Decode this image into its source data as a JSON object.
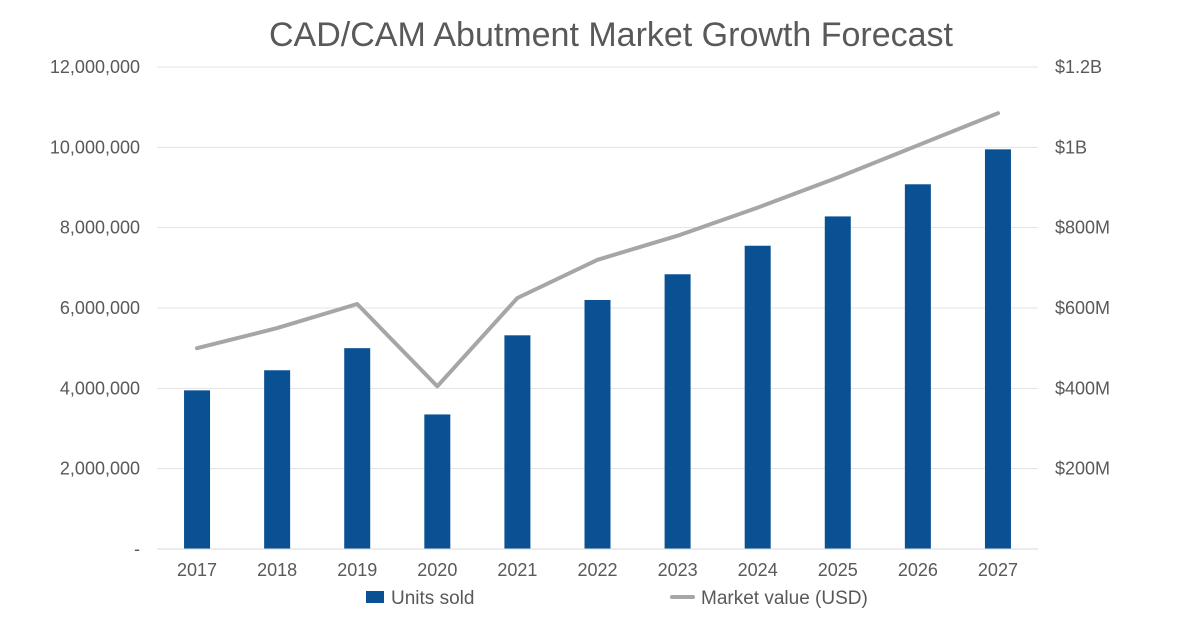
{
  "chart_data": {
    "type": "bar",
    "title": "CAD/CAM Abutment Market Growth Forecast",
    "categories": [
      "2017",
      "2018",
      "2019",
      "2020",
      "2021",
      "2022",
      "2023",
      "2024",
      "2025",
      "2026",
      "2027"
    ],
    "series": [
      {
        "name": "Units sold",
        "type": "bar",
        "axis": "left",
        "color": "#0a5194",
        "values": [
          3950000,
          4450000,
          5000000,
          3350000,
          5320000,
          6200000,
          6840000,
          7550000,
          8280000,
          9080000,
          9950000
        ]
      },
      {
        "name": "Market value (USD)",
        "type": "line",
        "axis": "right",
        "color": "#a6a6a6",
        "values": [
          500000000,
          550000000,
          610000000,
          405000000,
          625000000,
          720000000,
          780000000,
          850000000,
          925000000,
          1005000000,
          1085000000
        ]
      }
    ],
    "y_left": {
      "ylim": [
        0,
        12000000
      ],
      "ticks": [
        0,
        2000000,
        4000000,
        6000000,
        8000000,
        10000000,
        12000000
      ],
      "tick_labels": [
        "-",
        "2,000,000",
        "4,000,000",
        "6,000,000",
        "8,000,000",
        "10,000,000",
        "12,000,000"
      ]
    },
    "y_right": {
      "ylim": [
        0,
        1200000000
      ],
      "ticks": [
        200000000,
        400000000,
        600000000,
        800000000,
        1000000000,
        1200000000
      ],
      "tick_labels": [
        "$200M",
        "$400M",
        "$600M",
        "$800M",
        "$1B",
        "$1.2B"
      ]
    },
    "grid": true,
    "legend": "bottom"
  }
}
